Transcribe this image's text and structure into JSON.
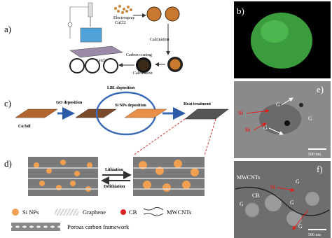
{
  "panels": {
    "a": {
      "label": "a)",
      "electrospray": "Electrospray",
      "salt": "CuCl2",
      "calcination_1": "Calcination",
      "carbon_coating": "Carbon coating",
      "calcination_2": "Calcination",
      "hf_etching": "HF etching"
    },
    "b": {
      "label": "b)"
    },
    "c": {
      "label": "c)",
      "lbl": "LBL deposition",
      "go": "GO deposition",
      "si": "Si NPs deposition",
      "heat": "Heat treatment",
      "foil": "Cu foil"
    },
    "d": {
      "label": "d)",
      "lithiation": "Lithiation",
      "delithiation": "Delithiation"
    },
    "legend": {
      "si": "Si NPs",
      "graphene": "Graphene",
      "cb": "CB",
      "mwcnt": "MWCNTs",
      "porous": "Porous carbon framework"
    },
    "e": {
      "label": "e)",
      "g": [
        "G",
        "G",
        "G"
      ],
      "si": [
        "Si",
        "Si"
      ],
      "scale": "500 nm"
    },
    "f": {
      "label": "f)",
      "mwcnt": "MWCNTs",
      "g": [
        "G",
        "G",
        "G",
        "G"
      ],
      "cb": "CB",
      "si": "Si",
      "scale": "500 nm"
    }
  }
}
